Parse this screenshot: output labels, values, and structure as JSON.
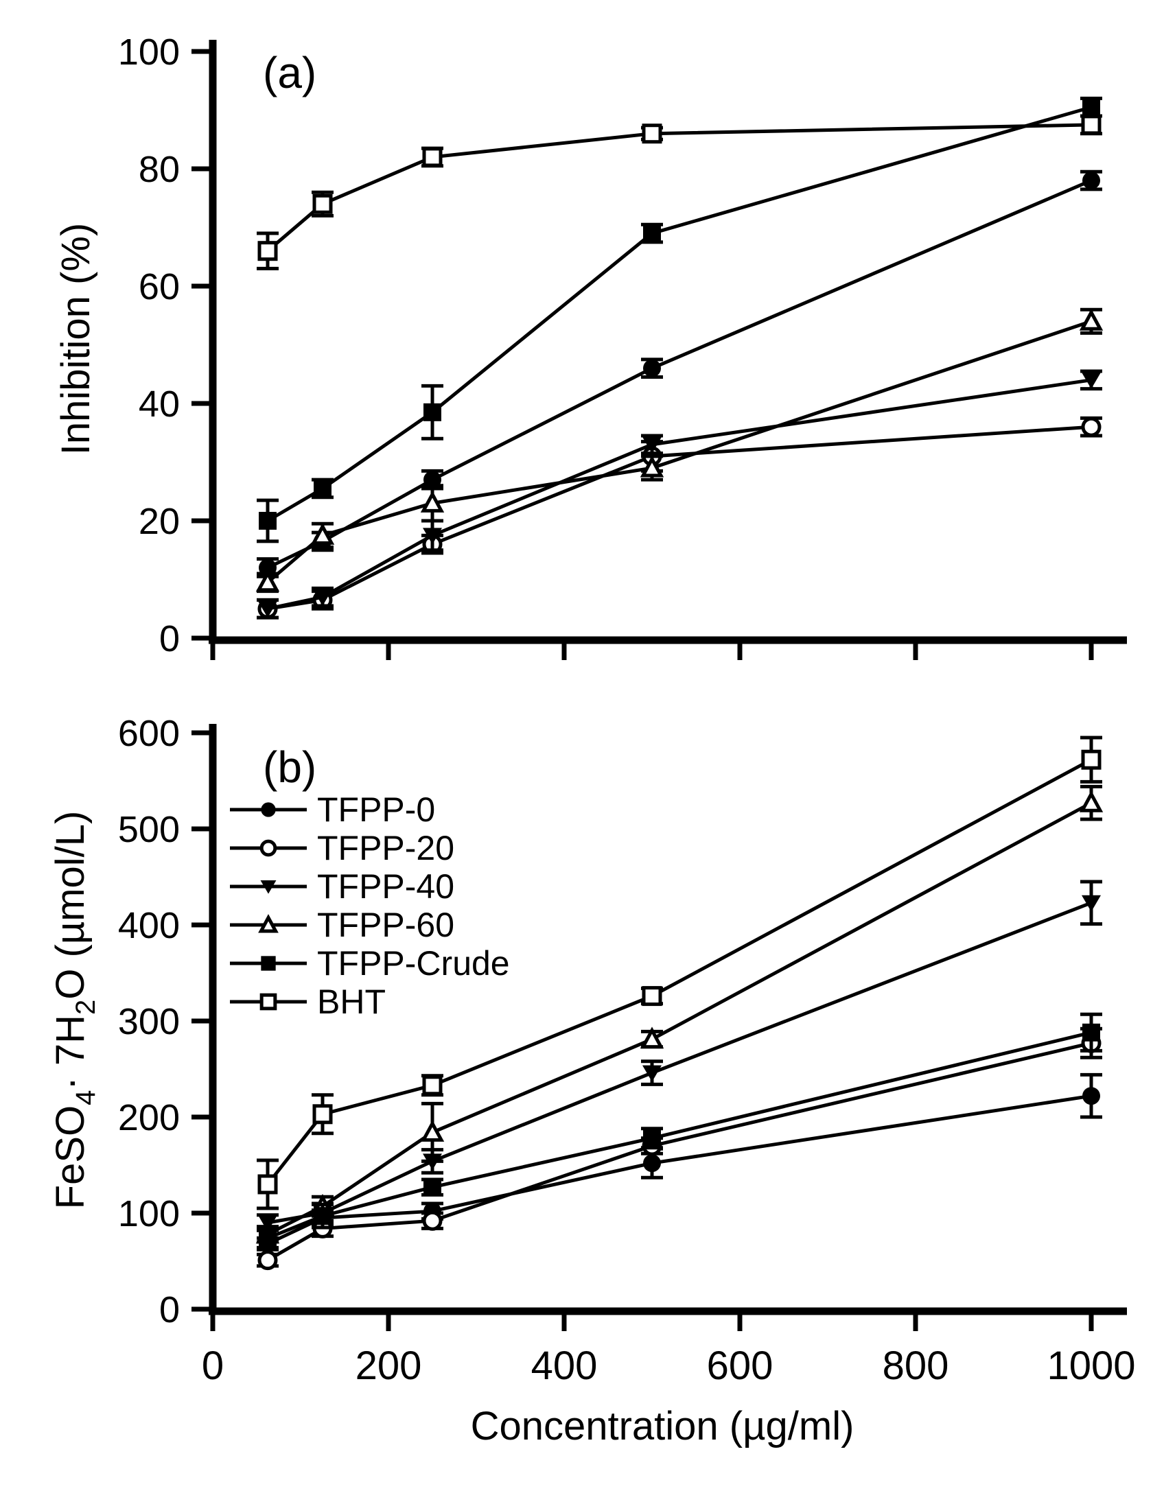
{
  "figure": {
    "background": "#ffffff",
    "ink": "#000000",
    "xlabel": "Concentration (µg/ml)"
  },
  "chart_data": [
    {
      "type": "line",
      "panel": "a",
      "panel_label": "(a)",
      "ylabel": "Inhibition (%)",
      "xlabel": "Concentration (µg/ml)",
      "x": [
        62.5,
        125,
        250,
        500,
        1000
      ],
      "xlim": [
        0,
        1040
      ],
      "ylim": [
        0,
        100
      ],
      "xticks": [
        0,
        200,
        400,
        600,
        800,
        1000
      ],
      "yticks": [
        0,
        20,
        40,
        60,
        80,
        100
      ],
      "x_tick_labels_visible": false,
      "grid": false,
      "legend_visible": false,
      "series": [
        {
          "name": "TFPP-0",
          "marker": "filled-circle",
          "values": [
            12,
            16.5,
            27,
            46,
            78
          ],
          "errors": [
            1.5,
            1.5,
            1.5,
            1.5,
            1.5
          ]
        },
        {
          "name": "TFPP-20",
          "marker": "open-circle",
          "values": [
            5,
            6.5,
            16,
            31,
            36
          ],
          "errors": [
            1.5,
            1.5,
            1.5,
            2.5,
            1.5
          ]
        },
        {
          "name": "TFPP-40",
          "marker": "filled-triangle-down",
          "values": [
            5,
            7,
            17.5,
            33,
            44
          ],
          "errors": [
            1.5,
            1.5,
            2.5,
            1.5,
            1.5
          ]
        },
        {
          "name": "TFPP-60",
          "marker": "open-triangle-up",
          "values": [
            9.5,
            17.5,
            23,
            29,
            54
          ],
          "errors": [
            1.5,
            2,
            3,
            2,
            2
          ]
        },
        {
          "name": "TFPP-Crude",
          "marker": "filled-square",
          "values": [
            20,
            25.5,
            38.5,
            69,
            90.5
          ],
          "errors": [
            3.5,
            1.5,
            4.5,
            1.5,
            1.5
          ]
        },
        {
          "name": "BHT",
          "marker": "open-square",
          "values": [
            66,
            74,
            82,
            86,
            87.5
          ],
          "errors": [
            3,
            2,
            1.5,
            1,
            1.5
          ]
        }
      ]
    },
    {
      "type": "line",
      "panel": "b",
      "panel_label": "(b)",
      "ylabel": "FeSO4· 7H2O (µmol/L)",
      "ylabel_parts": [
        {
          "text": "FeSO"
        },
        {
          "text": "4",
          "sub": true
        },
        {
          "text": "· 7H"
        },
        {
          "text": "2",
          "sub": true
        },
        {
          "text": "O (µmol/L)"
        }
      ],
      "xlabel": "Concentration (µg/ml)",
      "x": [
        62.5,
        125,
        250,
        500,
        1000
      ],
      "xlim": [
        0,
        1040
      ],
      "ylim": [
        0,
        600
      ],
      "xticks": [
        0,
        200,
        400,
        600,
        800,
        1000
      ],
      "yticks": [
        0,
        100,
        200,
        300,
        400,
        500,
        600
      ],
      "x_tick_labels_visible": true,
      "grid": false,
      "legend_visible": true,
      "legend_labels": [
        "TFPP-0",
        "TFPP-20",
        "TFPP-40",
        "TFPP-60",
        "TFPP-Crude",
        "BHT"
      ],
      "series": [
        {
          "name": "TFPP-0",
          "marker": "filled-circle",
          "values": [
            68,
            95,
            102,
            152,
            222
          ],
          "errors": [
            6,
            8,
            8,
            15,
            22
          ]
        },
        {
          "name": "TFPP-20",
          "marker": "open-circle",
          "values": [
            51,
            84,
            92,
            170,
            277
          ],
          "errors": [
            6,
            8,
            8,
            8,
            15
          ]
        },
        {
          "name": "TFPP-40",
          "marker": "filled-triangle-down",
          "values": [
            90,
            100,
            154,
            246,
            423
          ],
          "errors": [
            8,
            10,
            12,
            12,
            22
          ]
        },
        {
          "name": "TFPP-60",
          "marker": "open-triangle-up",
          "values": [
            78,
            107,
            184,
            281,
            527
          ],
          "errors": [
            8,
            10,
            30,
            8,
            17
          ]
        },
        {
          "name": "TFPP-Crude",
          "marker": "filled-square",
          "values": [
            74,
            97,
            127,
            178,
            288
          ],
          "errors": [
            10,
            12,
            8,
            10,
            19
          ]
        },
        {
          "name": "BHT",
          "marker": "open-square",
          "values": [
            130,
            203,
            233,
            326,
            572
          ],
          "errors": [
            25,
            20,
            10,
            8,
            23
          ]
        }
      ]
    }
  ]
}
